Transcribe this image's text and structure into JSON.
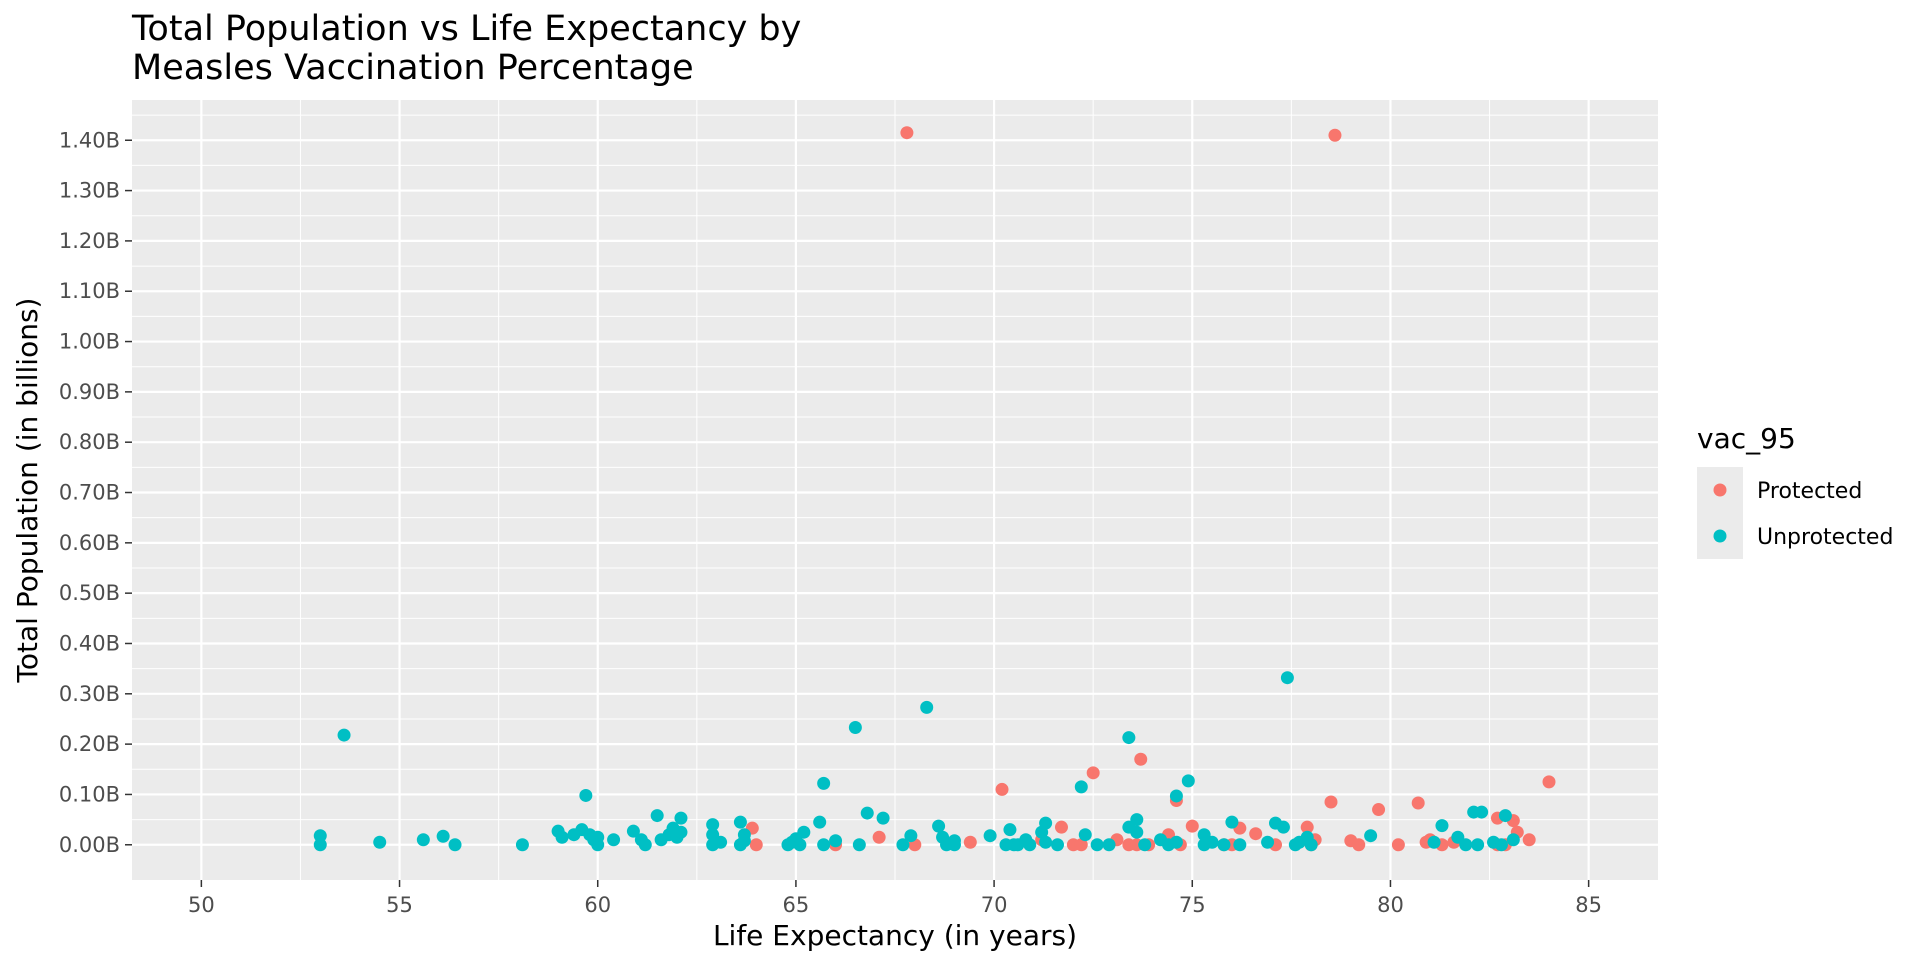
{
  "chart_data": {
    "type": "scatter",
    "title_lines": [
      "Total Population vs Life Expectancy by",
      "Measles Vaccination Percentage"
    ],
    "xlabel": "Life Expectancy (in years)",
    "ylabel": "Total Population (in billions)",
    "xlim": [
      48.25,
      86.75
    ],
    "ylim": [
      -0.07,
      1.48
    ],
    "x_ticks": [
      50,
      55,
      60,
      65,
      70,
      75,
      80,
      85
    ],
    "x_tick_labels": [
      "50",
      "55",
      "60",
      "65",
      "70",
      "75",
      "80",
      "85"
    ],
    "y_ticks": [
      0,
      0.1,
      0.2,
      0.3,
      0.4,
      0.5,
      0.6,
      0.7,
      0.8,
      0.9,
      1.0,
      1.1,
      1.2,
      1.3,
      1.4
    ],
    "y_tick_labels": [
      "0.00B",
      "0.10B",
      "0.20B",
      "0.30B",
      "0.40B",
      "0.50B",
      "0.60B",
      "0.70B",
      "0.80B",
      "0.90B",
      "1.00B",
      "1.10B",
      "1.20B",
      "1.30B",
      "1.40B"
    ],
    "grid": true,
    "legend": {
      "title": "vac_95",
      "position": "right"
    },
    "series": [
      {
        "name": "Protected",
        "color": "#F8766D",
        "points": [
          [
            67.8,
            1.415
          ],
          [
            78.6,
            1.41
          ],
          [
            84.0,
            0.125
          ],
          [
            73.7,
            0.17
          ],
          [
            72.5,
            0.143
          ],
          [
            70.2,
            0.11
          ],
          [
            74.6,
            0.088
          ],
          [
            78.5,
            0.085
          ],
          [
            79.7,
            0.07
          ],
          [
            80.7,
            0.083
          ],
          [
            75.0,
            0.037
          ],
          [
            71.7,
            0.035
          ],
          [
            77.9,
            0.035
          ],
          [
            76.2,
            0.033
          ],
          [
            83.1,
            0.048
          ],
          [
            82.7,
            0.053
          ],
          [
            63.9,
            0.033
          ],
          [
            67.1,
            0.015
          ],
          [
            76.6,
            0.022
          ],
          [
            74.4,
            0.02
          ],
          [
            73.1,
            0.01
          ],
          [
            71.2,
            0.01
          ],
          [
            69.4,
            0.005
          ],
          [
            68.0,
            0.0
          ],
          [
            64.0,
            0.0
          ],
          [
            66.0,
            0.0
          ],
          [
            72.0,
            0.0
          ],
          [
            72.2,
            0.0
          ],
          [
            73.4,
            0.0
          ],
          [
            73.6,
            0.0
          ],
          [
            73.9,
            0.0
          ],
          [
            74.7,
            0.0
          ],
          [
            75.8,
            0.0
          ],
          [
            77.1,
            0.0
          ],
          [
            78.1,
            0.01
          ],
          [
            79.0,
            0.008
          ],
          [
            79.2,
            0.0
          ],
          [
            80.2,
            0.0
          ],
          [
            80.9,
            0.005
          ],
          [
            81.3,
            0.0
          ],
          [
            81.6,
            0.005
          ],
          [
            82.7,
            0.0
          ],
          [
            82.9,
            0.0
          ],
          [
            83.2,
            0.025
          ],
          [
            83.5,
            0.01
          ],
          [
            81.0,
            0.01
          ],
          [
            78.0,
            0.0
          ],
          [
            76.0,
            0.0
          ]
        ]
      },
      {
        "name": "Unprotected",
        "color": "#00BFC4",
        "points": [
          [
            53.6,
            0.218
          ],
          [
            53.0,
            0.018
          ],
          [
            53.0,
            0.0
          ],
          [
            54.5,
            0.005
          ],
          [
            55.6,
            0.01
          ],
          [
            56.1,
            0.017
          ],
          [
            56.4,
            0.0
          ],
          [
            58.1,
            0.0
          ],
          [
            59.0,
            0.027
          ],
          [
            59.1,
            0.015
          ],
          [
            59.4,
            0.02
          ],
          [
            59.6,
            0.03
          ],
          [
            59.7,
            0.098
          ],
          [
            59.8,
            0.02
          ],
          [
            59.9,
            0.01
          ],
          [
            60.0,
            0.015
          ],
          [
            60.0,
            0.0
          ],
          [
            60.4,
            0.01
          ],
          [
            60.9,
            0.027
          ],
          [
            61.1,
            0.01
          ],
          [
            61.2,
            0.0
          ],
          [
            61.5,
            0.058
          ],
          [
            61.6,
            0.01
          ],
          [
            61.8,
            0.02
          ],
          [
            61.9,
            0.033
          ],
          [
            62.0,
            0.015
          ],
          [
            62.1,
            0.053
          ],
          [
            62.1,
            0.025
          ],
          [
            62.9,
            0.04
          ],
          [
            62.9,
            0.02
          ],
          [
            62.9,
            0.0
          ],
          [
            63.1,
            0.005
          ],
          [
            63.6,
            0.045
          ],
          [
            63.7,
            0.02
          ],
          [
            63.6,
            0.0
          ],
          [
            63.7,
            0.008
          ],
          [
            64.8,
            0.0
          ],
          [
            64.9,
            0.005
          ],
          [
            65.0,
            0.012
          ],
          [
            65.1,
            0.0
          ],
          [
            65.2,
            0.025
          ],
          [
            65.6,
            0.045
          ],
          [
            65.7,
            0.122
          ],
          [
            65.7,
            0.0
          ],
          [
            66.0,
            0.008
          ],
          [
            66.5,
            0.233
          ],
          [
            66.8,
            0.063
          ],
          [
            66.6,
            0.0
          ],
          [
            67.2,
            0.053
          ],
          [
            67.7,
            0.0
          ],
          [
            67.9,
            0.018
          ],
          [
            68.3,
            0.273
          ],
          [
            68.6,
            0.037
          ],
          [
            68.7,
            0.015
          ],
          [
            68.8,
            0.0
          ],
          [
            69.0,
            0.008
          ],
          [
            69.0,
            0.0
          ],
          [
            69.9,
            0.018
          ],
          [
            70.3,
            0.0
          ],
          [
            70.4,
            0.03
          ],
          [
            70.5,
            0.0
          ],
          [
            70.6,
            0.0
          ],
          [
            70.8,
            0.01
          ],
          [
            70.9,
            0.0
          ],
          [
            71.2,
            0.025
          ],
          [
            71.3,
            0.043
          ],
          [
            71.3,
            0.005
          ],
          [
            71.6,
            0.0
          ],
          [
            72.2,
            0.115
          ],
          [
            72.3,
            0.02
          ],
          [
            72.6,
            0.0
          ],
          [
            72.9,
            0.0
          ],
          [
            73.4,
            0.213
          ],
          [
            73.4,
            0.035
          ],
          [
            73.6,
            0.025
          ],
          [
            73.6,
            0.05
          ],
          [
            73.8,
            0.0
          ],
          [
            74.2,
            0.01
          ],
          [
            74.4,
            0.0
          ],
          [
            74.6,
            0.097
          ],
          [
            74.6,
            0.005
          ],
          [
            74.9,
            0.127
          ],
          [
            75.3,
            0.02
          ],
          [
            75.3,
            0.0
          ],
          [
            75.5,
            0.005
          ],
          [
            75.8,
            0.0
          ],
          [
            76.0,
            0.045
          ],
          [
            76.2,
            0.0
          ],
          [
            76.9,
            0.005
          ],
          [
            77.1,
            0.043
          ],
          [
            77.3,
            0.035
          ],
          [
            77.4,
            0.332
          ],
          [
            77.6,
            0.0
          ],
          [
            77.7,
            0.005
          ],
          [
            77.9,
            0.015
          ],
          [
            78.0,
            0.0
          ],
          [
            79.5,
            0.018
          ],
          [
            81.1,
            0.005
          ],
          [
            81.3,
            0.038
          ],
          [
            81.7,
            0.015
          ],
          [
            81.9,
            0.0
          ],
          [
            82.1,
            0.065
          ],
          [
            82.3,
            0.065
          ],
          [
            82.2,
            0.0
          ],
          [
            82.6,
            0.005
          ],
          [
            82.8,
            0.0
          ],
          [
            82.9,
            0.058
          ],
          [
            83.1,
            0.01
          ]
        ]
      }
    ]
  }
}
